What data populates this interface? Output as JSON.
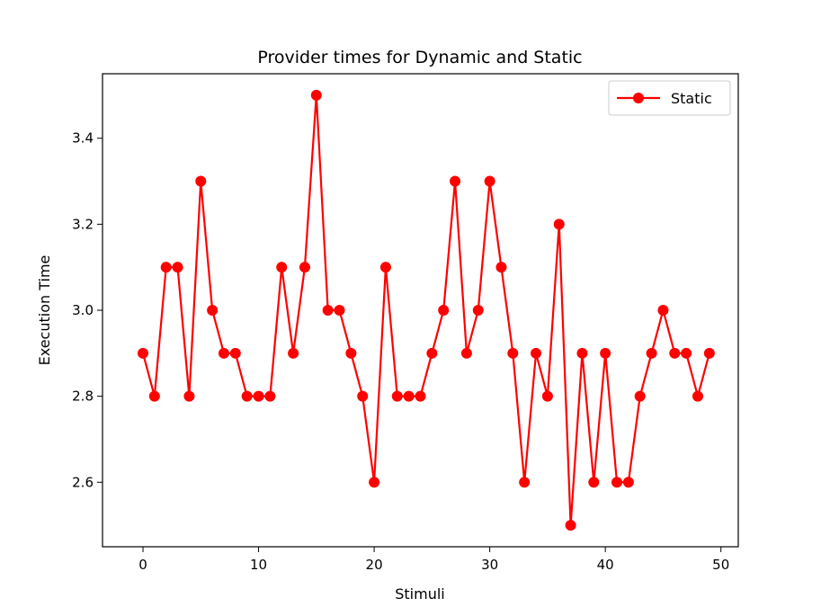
{
  "chart_data": {
    "type": "line",
    "title": "Provider times for Dynamic and Static",
    "xlabel": "Stimuli",
    "ylabel": "Execution Time",
    "xlim": [
      -3.5,
      51.5
    ],
    "ylim": [
      2.45,
      3.55
    ],
    "xticks": [
      0,
      10,
      20,
      30,
      40,
      50
    ],
    "xtick_labels": [
      "0",
      "10",
      "20",
      "30",
      "40",
      "50"
    ],
    "yticks": [
      2.6,
      2.8,
      3.0,
      3.2,
      3.4
    ],
    "ytick_labels": [
      "2.6",
      "2.8",
      "3.0",
      "3.2",
      "3.4"
    ],
    "grid": false,
    "legend_position": "top-right",
    "series": [
      {
        "name": "Static",
        "color": "#ff0000",
        "marker": "circle",
        "x": [
          0,
          1,
          2,
          3,
          4,
          5,
          6,
          7,
          8,
          9,
          10,
          11,
          12,
          13,
          14,
          15,
          16,
          17,
          18,
          19,
          20,
          21,
          22,
          23,
          24,
          25,
          26,
          27,
          28,
          29,
          30,
          31,
          32,
          33,
          34,
          35,
          36,
          37,
          38,
          39,
          40,
          41,
          42,
          43,
          44,
          45,
          46,
          47,
          48,
          49
        ],
        "values": [
          2.9,
          2.8,
          3.1,
          3.1,
          2.8,
          3.3,
          3.0,
          2.9,
          2.9,
          2.8,
          2.8,
          2.8,
          3.1,
          2.9,
          3.1,
          3.5,
          3.0,
          3.0,
          2.9,
          2.8,
          2.6,
          3.1,
          2.8,
          2.8,
          2.8,
          2.9,
          3.0,
          3.3,
          2.9,
          3.0,
          3.3,
          3.1,
          2.9,
          2.6,
          2.9,
          2.8,
          3.2,
          2.5,
          2.9,
          2.6,
          2.9,
          2.6,
          2.6,
          2.8,
          2.9,
          3.0,
          2.9,
          2.9,
          2.8,
          2.9
        ]
      }
    ]
  }
}
